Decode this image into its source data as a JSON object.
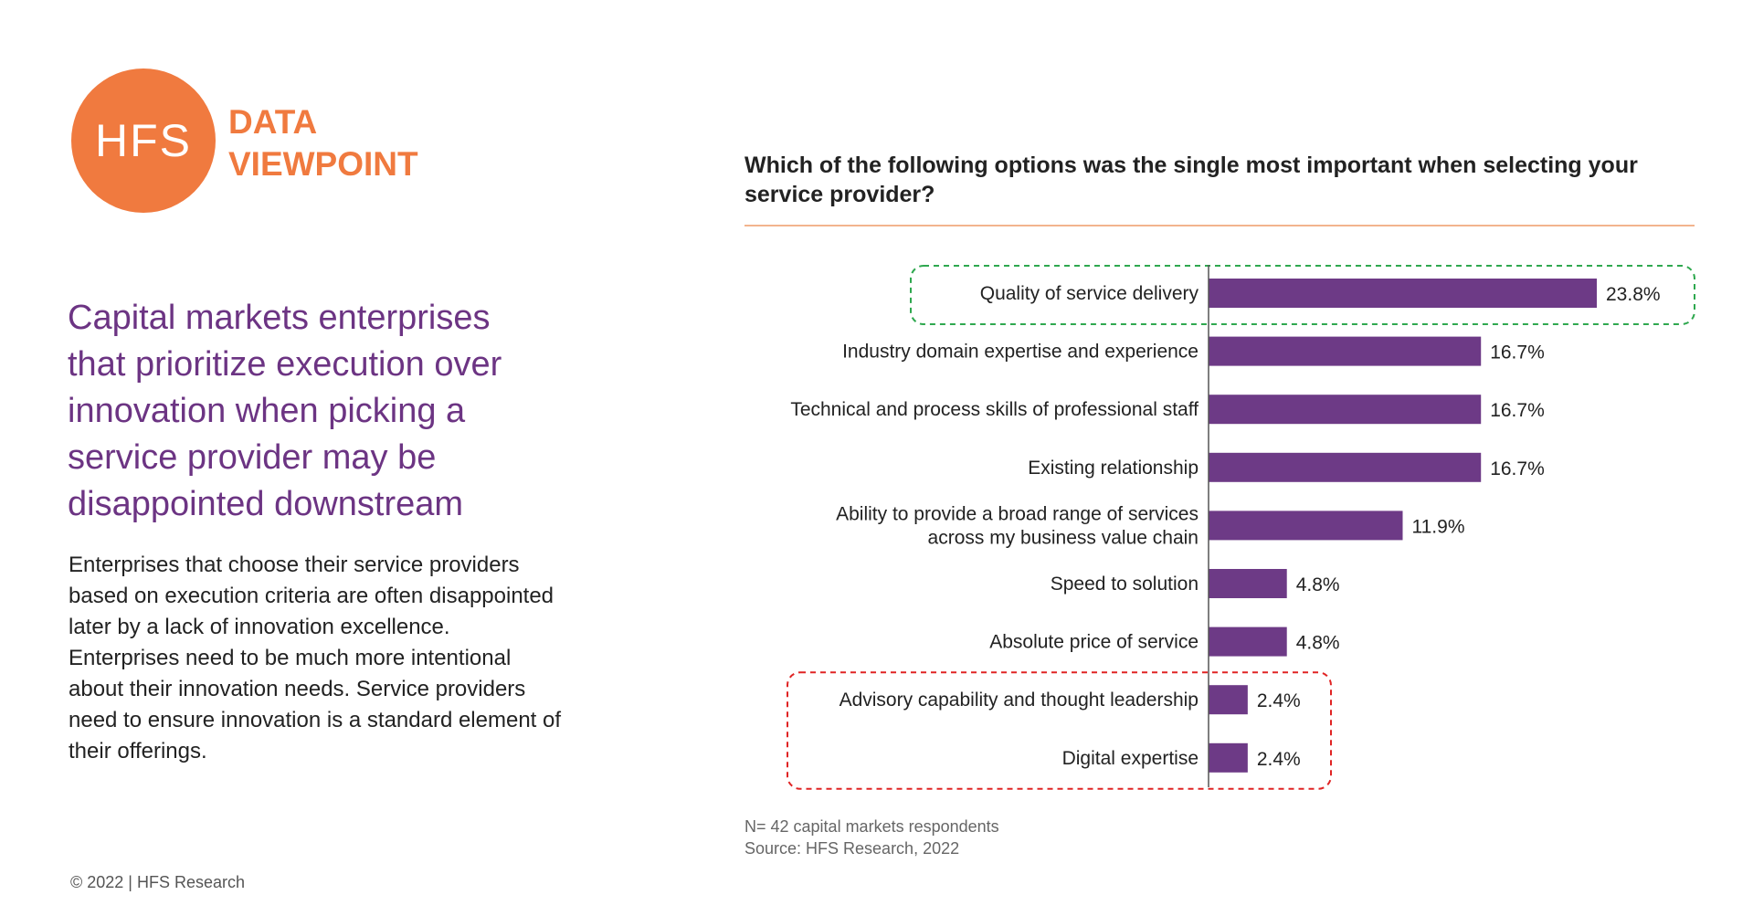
{
  "logo": {
    "initials": "HFS",
    "line1": "DATA",
    "line2": "VIEWPOINT",
    "color": "#f07a3f"
  },
  "headline": "Capital markets enterprises that prioritize execution over innovation when picking a service provider may be disappointed downstream",
  "body": "Enterprises that choose their service providers based on execution criteria are often disappointed later by a lack of innovation excellence. Enterprises need to be much more intentional about their innovation needs. Service providers need to ensure innovation is a standard element of their offerings.",
  "copyright": "© 2022 | HFS Research",
  "note": {
    "sample": "N= 42 capital markets respondents",
    "source": "Source: HFS Research, 2022"
  },
  "colors": {
    "bar": "#6d3a86",
    "headline": "#6c3483",
    "highlight_top": "#2fa84f",
    "highlight_bottom": "#e02424"
  },
  "chart_data": {
    "type": "bar",
    "orientation": "horizontal",
    "title": "Which of the following options was the single most important when selecting your service provider?",
    "categories": [
      [
        "Quality of service delivery"
      ],
      [
        "Industry domain expertise and experience"
      ],
      [
        "Technical and process skills of professional staff"
      ],
      [
        "Existing relationship"
      ],
      [
        "Ability to provide a broad range of services",
        "across my business value chain"
      ],
      [
        "Speed to solution"
      ],
      [
        "Absolute price of service"
      ],
      [
        "Advisory capability and thought leadership"
      ],
      [
        "Digital expertise"
      ]
    ],
    "values": [
      23.8,
      16.7,
      16.7,
      16.7,
      11.9,
      4.8,
      4.8,
      2.4,
      2.4
    ],
    "value_labels": [
      "23.8%",
      "16.7%",
      "16.7%",
      "16.7%",
      "11.9%",
      "4.8%",
      "4.8%",
      "2.4%",
      "2.4%"
    ],
    "xlim": [
      0,
      25
    ],
    "grid": false,
    "highlights": [
      {
        "items": [
          0
        ],
        "style": "dashed",
        "color": "#2fa84f"
      },
      {
        "items": [
          7,
          8
        ],
        "style": "dashed",
        "color": "#e02424"
      }
    ]
  }
}
